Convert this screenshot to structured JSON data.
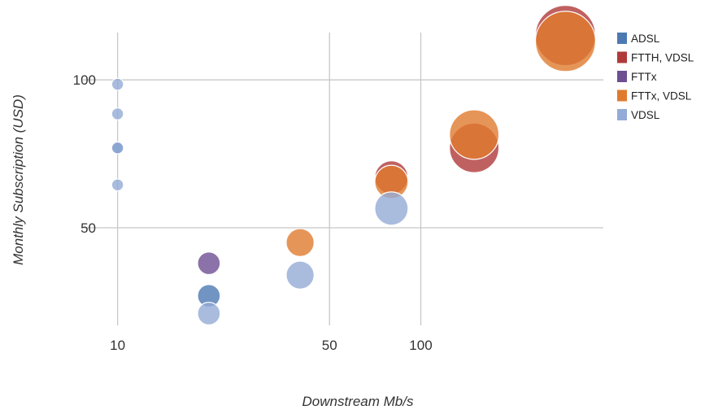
{
  "chart_data": {
    "type": "scatter",
    "title": "",
    "xlabel": "Downstream Mb/s",
    "ylabel": "Monthly Subscription (USD)",
    "x_scale": "log",
    "xlim": [
      9.6,
      400
    ],
    "ylim": [
      17,
      116
    ],
    "x_ticks": [
      10,
      50,
      100
    ],
    "x_tick_labels": [
      "10",
      "50",
      "100"
    ],
    "y_ticks": [
      50,
      100
    ],
    "y_tick_labels": [
      "50",
      "100"
    ],
    "grid": true,
    "legend_position": "top-right",
    "series": [
      {
        "name": "ADSL",
        "color": "#4d79b3",
        "points": [
          {
            "x": 10,
            "y": 77,
            "size": 1
          },
          {
            "x": 20,
            "y": 27,
            "size": 3
          }
        ]
      },
      {
        "name": "FTTH, VDSL",
        "color": "#b03a3a",
        "points": [
          {
            "x": 80,
            "y": 67,
            "size": 5
          },
          {
            "x": 150,
            "y": 77,
            "size": 8
          },
          {
            "x": 300,
            "y": 115,
            "size": 10
          }
        ]
      },
      {
        "name": "FTTx",
        "color": "#6e4f92",
        "points": [
          {
            "x": 20,
            "y": 38,
            "size": 3
          }
        ]
      },
      {
        "name": "FTTx, VDSL",
        "color": "#e07b2e",
        "points": [
          {
            "x": 40,
            "y": 45,
            "size": 4
          },
          {
            "x": 80,
            "y": 65.5,
            "size": 5
          },
          {
            "x": 150,
            "y": 81.5,
            "size": 8
          },
          {
            "x": 300,
            "y": 113,
            "size": 10
          }
        ]
      },
      {
        "name": "VDSL",
        "color": "#93abd6",
        "points": [
          {
            "x": 10,
            "y": 98.5,
            "size": 1
          },
          {
            "x": 10,
            "y": 88.5,
            "size": 1
          },
          {
            "x": 10,
            "y": 77,
            "size": 1
          },
          {
            "x": 10,
            "y": 64.5,
            "size": 1
          },
          {
            "x": 20,
            "y": 21,
            "size": 3
          },
          {
            "x": 40,
            "y": 34,
            "size": 4
          },
          {
            "x": 80,
            "y": 56.5,
            "size": 5
          }
        ]
      }
    ]
  }
}
